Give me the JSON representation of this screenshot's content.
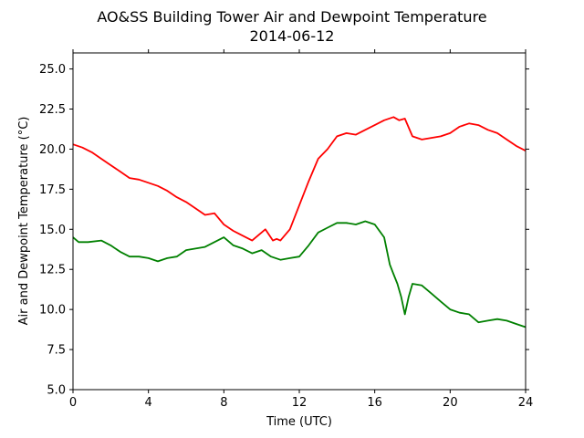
{
  "chart_data": {
    "type": "line",
    "title": "AO&SS Building Tower Air and Dewpoint Temperature",
    "subtitle": "2014-06-12",
    "xlabel": "Time (UTC)",
    "ylabel": "Air and Dewpoint Temperature (°C)",
    "xlim": [
      0,
      24
    ],
    "ylim": [
      5.0,
      26.0
    ],
    "x_ticks": [
      0,
      4,
      8,
      12,
      16,
      20,
      24
    ],
    "y_ticks": [
      5.0,
      7.5,
      10.0,
      12.5,
      15.0,
      17.5,
      20.0,
      22.5,
      25.0
    ],
    "x_tick_labels": [
      "0",
      "4",
      "8",
      "12",
      "16",
      "20",
      "24"
    ],
    "y_tick_labels": [
      "5.0",
      "7.5",
      "10.0",
      "12.5",
      "15.0",
      "17.5",
      "20.0",
      "22.5",
      "25.0"
    ],
    "grid": false,
    "series": [
      {
        "color": "#ff0000",
        "x": [
          0,
          0.5,
          1,
          1.5,
          2,
          2.5,
          3,
          3.5,
          4,
          4.5,
          5,
          5.5,
          6,
          6.5,
          7,
          7.5,
          8,
          8.5,
          9,
          9.5,
          9.8,
          10.2,
          10.6,
          10.8,
          11,
          11.5,
          12,
          12.5,
          13,
          13.5,
          14,
          14.5,
          15,
          15.5,
          16,
          16.5,
          17,
          17.3,
          17.6,
          18,
          18.5,
          19,
          19.5,
          20,
          20.5,
          21,
          21.5,
          22,
          22.5,
          23,
          23.5,
          24
        ],
        "values": [
          20.3,
          20.1,
          19.8,
          19.4,
          19.0,
          18.6,
          18.2,
          18.1,
          17.9,
          17.7,
          17.4,
          17.0,
          16.7,
          16.3,
          15.9,
          16.0,
          15.3,
          14.9,
          14.6,
          14.3,
          14.6,
          15.0,
          14.3,
          14.4,
          14.3,
          15.0,
          16.5,
          18.0,
          19.4,
          20.0,
          20.8,
          21.0,
          20.9,
          21.2,
          21.5,
          21.8,
          22.0,
          21.8,
          21.9,
          20.8,
          20.6,
          20.7,
          20.8,
          21.0,
          21.4,
          21.6,
          21.5,
          21.2,
          21.0,
          20.6,
          20.2,
          19.9
        ]
      },
      {
        "color": "#008000",
        "x": [
          0,
          0.3,
          0.8,
          1.5,
          2,
          2.5,
          3,
          3.5,
          4,
          4.5,
          5,
          5.5,
          6,
          6.5,
          7,
          7.5,
          8,
          8.5,
          9,
          9.5,
          10,
          10.5,
          11,
          11.5,
          12,
          12.5,
          13,
          13.5,
          14,
          14.5,
          15,
          15.5,
          16,
          16.5,
          16.8,
          17,
          17.2,
          17.4,
          17.6,
          17.8,
          18,
          18.5,
          19,
          19.5,
          20,
          20.5,
          21,
          21.5,
          22,
          22.5,
          23,
          23.5,
          24
        ],
        "values": [
          14.5,
          14.2,
          14.2,
          14.3,
          14.0,
          13.6,
          13.3,
          13.3,
          13.2,
          13.0,
          13.2,
          13.3,
          13.7,
          13.8,
          13.9,
          14.2,
          14.5,
          14.0,
          13.8,
          13.5,
          13.7,
          13.3,
          13.1,
          13.2,
          13.3,
          14.0,
          14.8,
          15.1,
          15.4,
          15.4,
          15.3,
          15.5,
          15.3,
          14.5,
          12.8,
          12.2,
          11.6,
          10.8,
          9.7,
          10.8,
          11.6,
          11.5,
          11.0,
          10.5,
          10.0,
          9.8,
          9.7,
          9.2,
          9.3,
          9.4,
          9.3,
          9.1,
          8.9
        ]
      }
    ]
  }
}
